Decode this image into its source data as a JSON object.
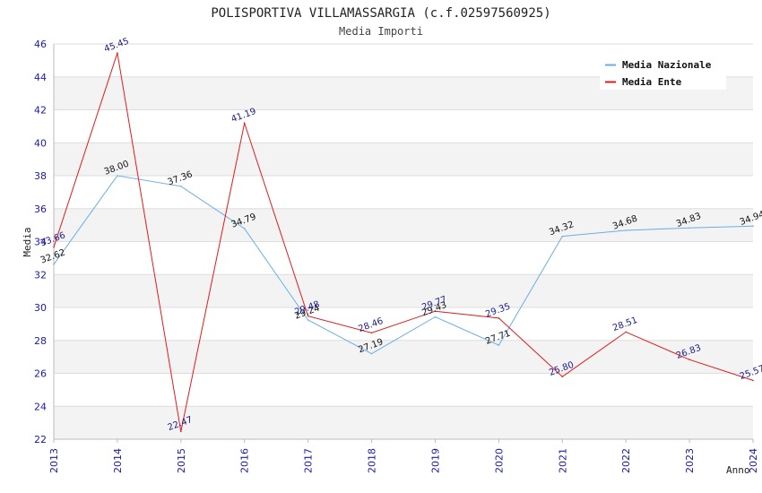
{
  "chart_data": {
    "type": "line",
    "title": "POLISPORTIVA VILLAMASSARGIA (c.f.02597560925)",
    "subtitle": "Media Importi",
    "xlabel": "Anno",
    "ylabel": "Media",
    "x": [
      "2013",
      "2014",
      "2015",
      "2016",
      "2017",
      "2018",
      "2019",
      "2020",
      "2021",
      "2022",
      "2023",
      "2024"
    ],
    "ylim": [
      22,
      46
    ],
    "yticks": [
      "22",
      "24",
      "26",
      "28",
      "30",
      "32",
      "34",
      "36",
      "38",
      "40",
      "42",
      "44",
      "46"
    ],
    "grid": true,
    "legend_position": "top-right",
    "series": [
      {
        "name": "Media Nazionale",
        "color": "#6aaee6",
        "label_color": "#111111",
        "values": [
          32.62,
          38.0,
          37.36,
          34.79,
          29.24,
          27.19,
          29.43,
          27.71,
          34.32,
          34.68,
          34.83,
          34.94
        ],
        "labels": [
          "32.62",
          "38.00",
          "37.36",
          "34.79",
          "29.24",
          "27.19",
          "29.43",
          "27.71",
          "34.32",
          "34.68",
          "34.83",
          "34.94"
        ]
      },
      {
        "name": "Media Ente",
        "color": "#e31a1c",
        "label_color": "#1a1a8c",
        "values": [
          33.66,
          45.45,
          22.47,
          41.19,
          29.48,
          28.46,
          29.77,
          29.35,
          25.8,
          28.51,
          26.83,
          25.57
        ],
        "labels": [
          "33.66",
          "45.45",
          "22.47",
          "41.19",
          "29.48",
          "28.46",
          "29.77",
          "29.35",
          "25.80",
          "28.51",
          "26.83",
          "25.57"
        ]
      }
    ]
  }
}
